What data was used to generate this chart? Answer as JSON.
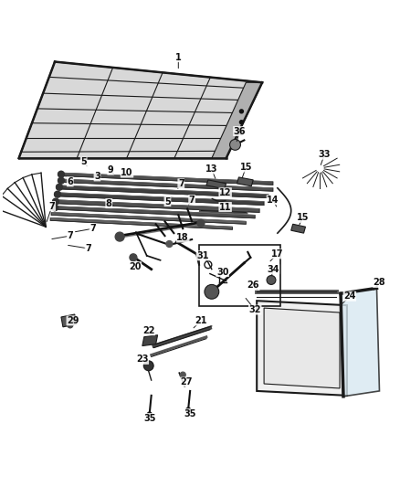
{
  "bg_color": "#ffffff",
  "line_color": "#1a1a1a",
  "dark_color": "#111111",
  "gray_color": "#888888",
  "light_gray": "#dddddd",
  "med_gray": "#999999"
}
